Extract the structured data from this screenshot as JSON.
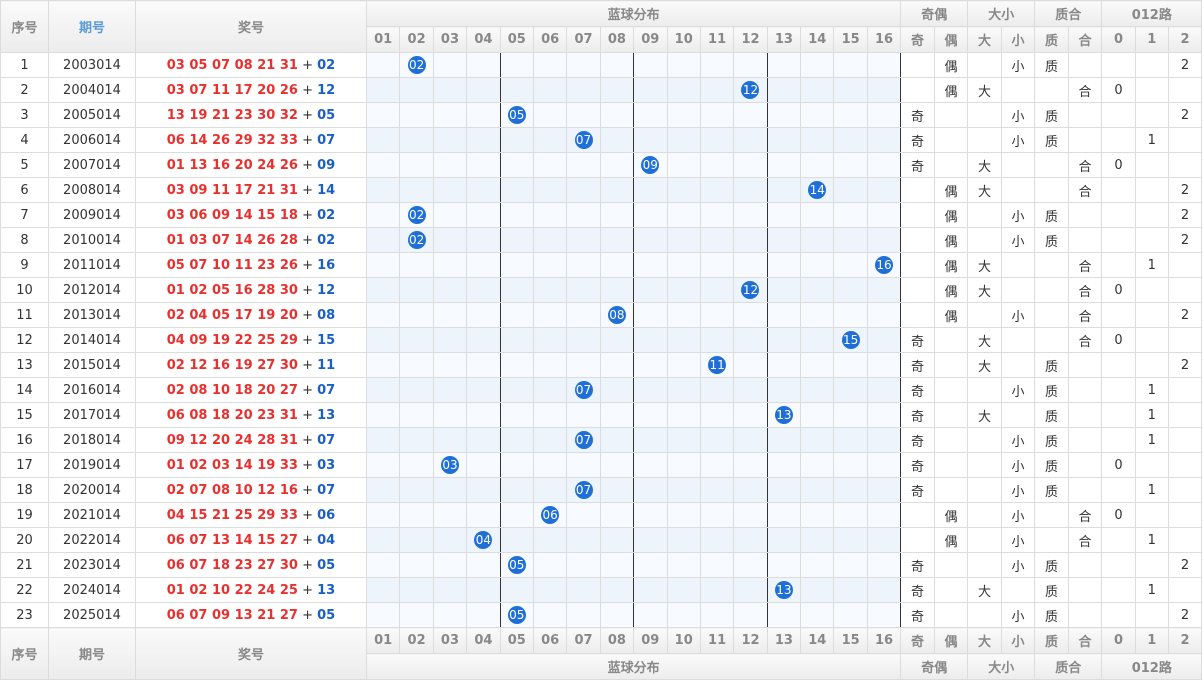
{
  "header": {
    "seq": "序号",
    "period": "期号",
    "prize": "奖号",
    "blue_dist": "蓝球分布",
    "groups": [
      "奇偶",
      "大小",
      "质合",
      "012路"
    ],
    "blue_cols": [
      "01",
      "02",
      "03",
      "04",
      "05",
      "06",
      "07",
      "08",
      "09",
      "10",
      "11",
      "12",
      "13",
      "14",
      "15",
      "16"
    ],
    "sub_cols": [
      [
        "奇",
        "偶"
      ],
      [
        "大",
        "小"
      ],
      [
        "质",
        "合"
      ],
      [
        "0",
        "1",
        "2"
      ]
    ]
  },
  "plus": "+",
  "rows": [
    {
      "seq": 1,
      "period": "2003014",
      "reds": "03 05 07 08 21 31",
      "blue": "02",
      "parity": "偶",
      "size": "小",
      "prime": "质",
      "route": 2
    },
    {
      "seq": 2,
      "period": "2004014",
      "reds": "03 07 11 17 20 26",
      "blue": "12",
      "parity": "偶",
      "size": "大",
      "prime": "合",
      "route": 0
    },
    {
      "seq": 3,
      "period": "2005014",
      "reds": "13 19 21 23 30 32",
      "blue": "05",
      "parity": "奇",
      "size": "小",
      "prime": "质",
      "route": 2
    },
    {
      "seq": 4,
      "period": "2006014",
      "reds": "06 14 26 29 32 33",
      "blue": "07",
      "parity": "奇",
      "size": "小",
      "prime": "质",
      "route": 1
    },
    {
      "seq": 5,
      "period": "2007014",
      "reds": "01 13 16 20 24 26",
      "blue": "09",
      "parity": "奇",
      "size": "大",
      "prime": "合",
      "route": 0
    },
    {
      "seq": 6,
      "period": "2008014",
      "reds": "03 09 11 17 21 31",
      "blue": "14",
      "parity": "偶",
      "size": "大",
      "prime": "合",
      "route": 2
    },
    {
      "seq": 7,
      "period": "2009014",
      "reds": "03 06 09 14 15 18",
      "blue": "02",
      "parity": "偶",
      "size": "小",
      "prime": "质",
      "route": 2
    },
    {
      "seq": 8,
      "period": "2010014",
      "reds": "01 03 07 14 26 28",
      "blue": "02",
      "parity": "偶",
      "size": "小",
      "prime": "质",
      "route": 2
    },
    {
      "seq": 9,
      "period": "2011014",
      "reds": "05 07 10 11 23 26",
      "blue": "16",
      "parity": "偶",
      "size": "大",
      "prime": "合",
      "route": 1
    },
    {
      "seq": 10,
      "period": "2012014",
      "reds": "01 02 05 16 28 30",
      "blue": "12",
      "parity": "偶",
      "size": "大",
      "prime": "合",
      "route": 0
    },
    {
      "seq": 11,
      "period": "2013014",
      "reds": "02 04 05 17 19 20",
      "blue": "08",
      "parity": "偶",
      "size": "小",
      "prime": "合",
      "route": 2
    },
    {
      "seq": 12,
      "period": "2014014",
      "reds": "04 09 19 22 25 29",
      "blue": "15",
      "parity": "奇",
      "size": "大",
      "prime": "合",
      "route": 0
    },
    {
      "seq": 13,
      "period": "2015014",
      "reds": "02 12 16 19 27 30",
      "blue": "11",
      "parity": "奇",
      "size": "大",
      "prime": "质",
      "route": 2
    },
    {
      "seq": 14,
      "period": "2016014",
      "reds": "02 08 10 18 20 27",
      "blue": "07",
      "parity": "奇",
      "size": "小",
      "prime": "质",
      "route": 1
    },
    {
      "seq": 15,
      "period": "2017014",
      "reds": "06 08 18 20 23 31",
      "blue": "13",
      "parity": "奇",
      "size": "大",
      "prime": "质",
      "route": 1
    },
    {
      "seq": 16,
      "period": "2018014",
      "reds": "09 12 20 24 28 31",
      "blue": "07",
      "parity": "奇",
      "size": "小",
      "prime": "质",
      "route": 1
    },
    {
      "seq": 17,
      "period": "2019014",
      "reds": "01 02 03 14 19 33",
      "blue": "03",
      "parity": "奇",
      "size": "小",
      "prime": "质",
      "route": 0
    },
    {
      "seq": 18,
      "period": "2020014",
      "reds": "02 07 08 10 12 16",
      "blue": "07",
      "parity": "奇",
      "size": "小",
      "prime": "质",
      "route": 1
    },
    {
      "seq": 19,
      "period": "2021014",
      "reds": "04 15 21 25 29 33",
      "blue": "06",
      "parity": "偶",
      "size": "小",
      "prime": "合",
      "route": 0
    },
    {
      "seq": 20,
      "period": "2022014",
      "reds": "06 07 13 14 15 27",
      "blue": "04",
      "parity": "偶",
      "size": "小",
      "prime": "合",
      "route": 1
    },
    {
      "seq": 21,
      "period": "2023014",
      "reds": "06 07 18 23 27 30",
      "blue": "05",
      "parity": "奇",
      "size": "小",
      "prime": "质",
      "route": 2
    },
    {
      "seq": 22,
      "period": "2024014",
      "reds": "01 02 10 22 24 25",
      "blue": "13",
      "parity": "奇",
      "size": "大",
      "prime": "质",
      "route": 1
    },
    {
      "seq": 23,
      "period": "2025014",
      "reds": "06 07 09 13 21 27",
      "blue": "05",
      "parity": "奇",
      "size": "小",
      "prime": "质",
      "route": 2
    }
  ]
}
